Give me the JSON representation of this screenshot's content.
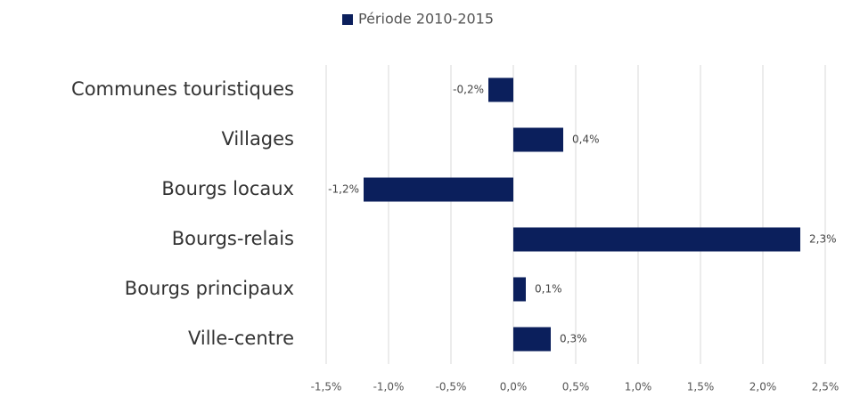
{
  "chart_data": {
    "type": "barh",
    "categories": [
      "Communes touristiques",
      "Villages",
      "Bourgs locaux",
      "Bourgs-relais",
      "Bourgs principaux",
      "Ville-centre"
    ],
    "series": [
      {
        "name": "Période 2010-2015",
        "color": "#0b1f5c",
        "values": [
          -0.2,
          0.4,
          -1.2,
          2.3,
          0.1,
          0.3
        ],
        "value_labels": [
          "-0,2%",
          "0,4%",
          "-1,2%",
          "2,3%",
          "0,1%",
          "0,3%"
        ]
      }
    ],
    "xlim": [
      -1.5,
      2.5
    ],
    "xticks": [
      {
        "value": -1.5,
        "label": "-1,5%"
      },
      {
        "value": -1.0,
        "label": "-1,0%"
      },
      {
        "value": -0.5,
        "label": "-0,5%"
      },
      {
        "value": 0,
        "label": "0,0%"
      },
      {
        "value": 0.5,
        "label": "0,5%"
      },
      {
        "value": 1.0,
        "label": "1,0%"
      },
      {
        "value": 1.5,
        "label": "1,5%"
      },
      {
        "value": 2.0,
        "label": "2,0%"
      },
      {
        "value": 2.5,
        "label": "2,5%"
      }
    ],
    "grid": true,
    "legend": "top"
  }
}
